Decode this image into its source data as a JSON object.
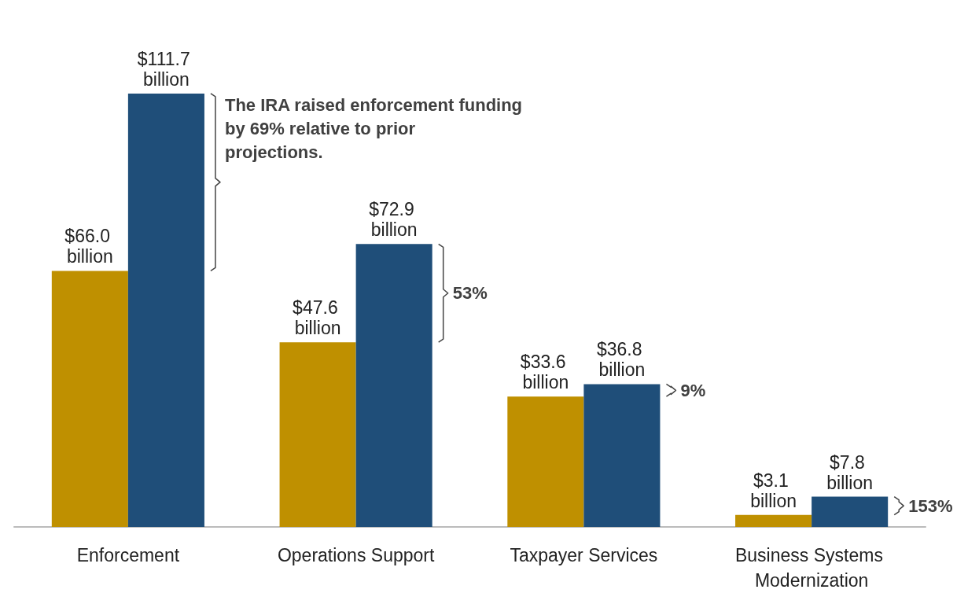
{
  "chart_data": {
    "type": "bar",
    "categories": [
      "Enforcement",
      "Operations Support",
      "Taxpayer Services",
      "Business Systems Modernization"
    ],
    "series": [
      {
        "color": "#bf9000",
        "values": [
          66.0,
          47.6,
          33.6,
          3.1
        ],
        "value_labels": [
          "$66.0 billion",
          "$47.6 billion",
          "$33.6 billion",
          "$3.1 billion"
        ]
      },
      {
        "color": "#1f4e79",
        "values": [
          111.7,
          72.9,
          36.8,
          7.8
        ],
        "value_labels": [
          "$111.7 billion",
          "$72.9 billion",
          "$36.8 billion",
          "$7.8 billion"
        ]
      }
    ],
    "annotations": [
      "The IRA raised enforcement funding by 69% relative to prior projections.",
      "53%",
      "9%",
      "153%"
    ]
  }
}
